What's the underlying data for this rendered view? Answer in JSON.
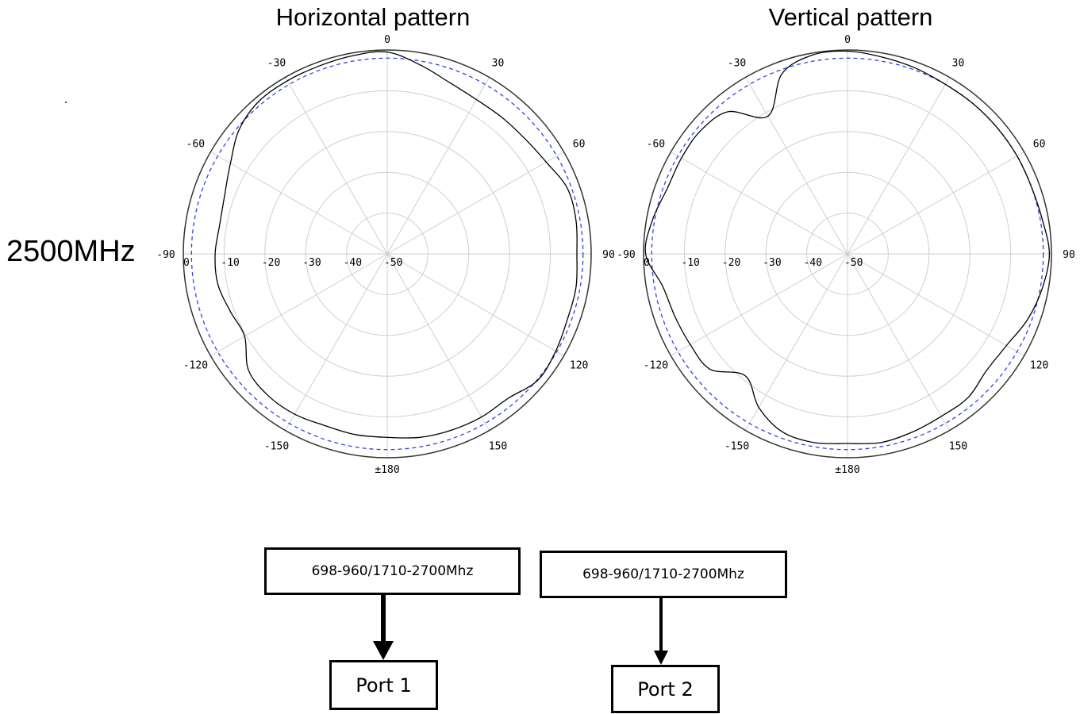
{
  "frequency_label": "2500MHz",
  "chart_data": [
    {
      "type": "polar",
      "title": "Horizontal pattern",
      "angle_labels": [
        "0",
        "30",
        "60",
        "90",
        "120",
        "150",
        "±180",
        "-150",
        "-120",
        "-90",
        "-60",
        "-30"
      ],
      "radial_labels": [
        "0",
        "-10",
        "-20",
        "-30",
        "-40",
        "-50"
      ],
      "rlim": [
        -50,
        0
      ],
      "grid": true,
      "reference_level_db": -2,
      "reference_color": "#3344dd",
      "trace_color": "#000000",
      "series": [
        {
          "angles_deg": [
            0,
            10,
            20,
            30,
            40,
            50,
            60,
            70,
            80,
            90,
            100,
            110,
            120,
            130,
            140,
            150,
            160,
            170,
            180,
            190,
            200,
            210,
            220,
            230,
            240,
            250,
            260,
            270,
            280,
            290,
            300,
            310,
            320,
            330,
            340,
            350
          ],
          "values_db": [
            -0.5,
            -3,
            -5.3,
            -6.3,
            -6.3,
            -6,
            -5,
            -3,
            -3,
            -3.5,
            -3,
            -3,
            -2.3,
            -1.8,
            -3.8,
            -3.8,
            -4,
            -4.3,
            -5,
            -5,
            -5.2,
            -4.6,
            -4.6,
            -5.6,
            -9.6,
            -9,
            -7.8,
            -7.8,
            -8.3,
            -7.6,
            -5.6,
            -2.6,
            -1.1,
            -1,
            -1,
            -0.7
          ]
        }
      ]
    },
    {
      "type": "polar",
      "title": "Vertical pattern",
      "angle_labels": [
        "0",
        "30",
        "60",
        "90",
        "120",
        "150",
        "±180",
        "-150",
        "-120",
        "-90",
        "-60",
        "-30"
      ],
      "radial_labels": [
        "0",
        "-10",
        "-20",
        "-30",
        "-40",
        "-50"
      ],
      "rlim": [
        -50,
        0
      ],
      "grid": true,
      "reference_level_db": -2,
      "reference_color": "#3344dd",
      "trace_color": "#000000",
      "series": [
        {
          "angles_deg": [
            0,
            10,
            20,
            30,
            40,
            50,
            60,
            70,
            80,
            90,
            100,
            110,
            120,
            130,
            140,
            150,
            160,
            170,
            180,
            190,
            200,
            210,
            220,
            230,
            240,
            250,
            260,
            270,
            280,
            290,
            300,
            310,
            320,
            330,
            340,
            350
          ],
          "values_db": [
            -0.3,
            -1,
            -1.5,
            -2,
            -2,
            -2,
            -2,
            -2,
            -1.5,
            -0.5,
            -1.5,
            -3,
            -5,
            -5.5,
            -4,
            -4,
            -3.5,
            -3,
            -3.5,
            -3,
            -3.5,
            -6.5,
            -11,
            -6,
            -5.5,
            -5,
            -4,
            -0.5,
            -1.5,
            -3,
            -3,
            -3,
            -4.5,
            -11,
            -3,
            -0.5
          ]
        }
      ]
    }
  ],
  "diagram": {
    "band1": "698-960/1710-2700Mhz",
    "band2": "698-960/1710-2700Mhz",
    "port1": "Port 1",
    "port2": "Port 2"
  }
}
